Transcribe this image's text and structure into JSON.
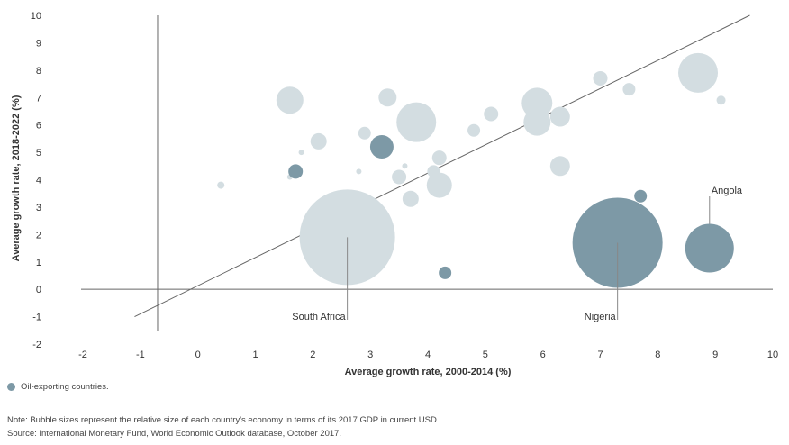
{
  "chart_data": {
    "type": "scatter",
    "subtype": "bubble",
    "xlabel": "Average growth rate, 2000-2014 (%)",
    "ylabel": "Average growth rate, 2018-2022 (%)",
    "xlim": [
      -2,
      10
    ],
    "ylim": [
      -2,
      10
    ],
    "x_ticks": [
      -2,
      -1,
      0,
      1,
      2,
      3,
      4,
      5,
      6,
      7,
      8,
      9,
      10
    ],
    "y_ticks": [
      -2,
      -1,
      0,
      1,
      2,
      3,
      4,
      5,
      6,
      7,
      8,
      9,
      10
    ],
    "x_tick_labels": [
      "-2",
      "-1",
      "0",
      "1",
      "2",
      "3",
      "4",
      "5",
      "6",
      "7",
      "8",
      "9",
      "10"
    ],
    "y_tick_labels": [
      "-2",
      "-1",
      "0",
      "1",
      "2",
      "3",
      "4",
      "5",
      "6",
      "7",
      "8",
      "9",
      "10"
    ],
    "grid": false,
    "reference_line": {
      "type": "diagonal",
      "from": [
        -1.1,
        -1.0
      ],
      "to": [
        9.6,
        10.0
      ]
    },
    "colors": {
      "oil": "#7d99a6",
      "non_oil": "#d3dde1",
      "axis": "#666666",
      "text": "#333333"
    },
    "legend": {
      "position": "bottom-left",
      "label": "Oil-exporting countries."
    },
    "callouts": [
      {
        "label": "South Africa",
        "x": 2.6,
        "y": 1.9
      },
      {
        "label": "Nigeria",
        "x": 7.3,
        "y": 1.7
      },
      {
        "label": "Angola",
        "x": 8.9,
        "y": 1.5
      }
    ],
    "points": [
      {
        "x": 0.4,
        "y": 3.8,
        "size": 4,
        "oil": false
      },
      {
        "x": 1.6,
        "y": 6.9,
        "size": 15,
        "oil": false
      },
      {
        "x": 1.6,
        "y": 4.1,
        "size": 3,
        "oil": false
      },
      {
        "x": 1.7,
        "y": 4.3,
        "size": 8,
        "oil": true
      },
      {
        "x": 1.8,
        "y": 5.0,
        "size": 3,
        "oil": false
      },
      {
        "x": 2.1,
        "y": 5.4,
        "size": 9,
        "oil": false
      },
      {
        "x": 2.6,
        "y": 1.9,
        "size": 53,
        "oil": false
      },
      {
        "x": 2.8,
        "y": 4.3,
        "size": 3,
        "oil": false
      },
      {
        "x": 2.9,
        "y": 5.7,
        "size": 7,
        "oil": false
      },
      {
        "x": 3.2,
        "y": 5.2,
        "size": 13,
        "oil": true
      },
      {
        "x": 3.3,
        "y": 7.0,
        "size": 10,
        "oil": false
      },
      {
        "x": 3.5,
        "y": 4.1,
        "size": 8,
        "oil": false
      },
      {
        "x": 3.6,
        "y": 4.5,
        "size": 3,
        "oil": false
      },
      {
        "x": 3.7,
        "y": 3.3,
        "size": 9,
        "oil": false
      },
      {
        "x": 3.8,
        "y": 6.1,
        "size": 22,
        "oil": false
      },
      {
        "x": 4.1,
        "y": 4.3,
        "size": 7,
        "oil": false
      },
      {
        "x": 4.2,
        "y": 4.8,
        "size": 8,
        "oil": false
      },
      {
        "x": 4.2,
        "y": 3.8,
        "size": 14,
        "oil": false
      },
      {
        "x": 4.3,
        "y": 0.6,
        "size": 7,
        "oil": true
      },
      {
        "x": 4.8,
        "y": 5.8,
        "size": 7,
        "oil": false
      },
      {
        "x": 5.1,
        "y": 6.4,
        "size": 8,
        "oil": false
      },
      {
        "x": 5.9,
        "y": 6.8,
        "size": 17,
        "oil": false
      },
      {
        "x": 5.9,
        "y": 6.1,
        "size": 15,
        "oil": false
      },
      {
        "x": 6.3,
        "y": 6.3,
        "size": 11,
        "oil": false
      },
      {
        "x": 6.3,
        "y": 4.5,
        "size": 11,
        "oil": false
      },
      {
        "x": 7.0,
        "y": 7.7,
        "size": 8,
        "oil": false
      },
      {
        "x": 7.3,
        "y": 1.7,
        "size": 50,
        "oil": true
      },
      {
        "x": 7.5,
        "y": 7.3,
        "size": 7,
        "oil": false
      },
      {
        "x": 7.7,
        "y": 3.4,
        "size": 7,
        "oil": true
      },
      {
        "x": 8.7,
        "y": 7.9,
        "size": 22,
        "oil": false
      },
      {
        "x": 8.9,
        "y": 1.5,
        "size": 27,
        "oil": true
      },
      {
        "x": 9.1,
        "y": 6.9,
        "size": 5,
        "oil": false
      }
    ]
  },
  "notes": {
    "note": "Note: Bubble sizes represent the relative size of each country's economy in terms of its 2017 GDP in current USD.",
    "source": "Source: International Monetary Fund, World Economic Outlook database, October 2017."
  }
}
